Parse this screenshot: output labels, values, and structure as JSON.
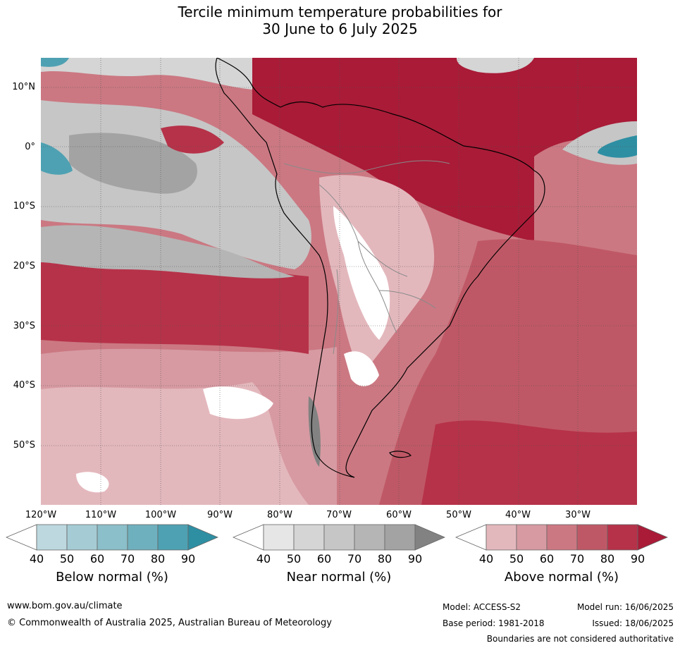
{
  "title_line1": "Tercile minimum temperature probabilities for",
  "title_line2": "30 June to 6 July 2025",
  "lat_labels": [
    "10°N",
    "0°",
    "10°S",
    "20°S",
    "30°S",
    "40°S",
    "50°S"
  ],
  "lon_labels": [
    "120°W",
    "110°W",
    "100°W",
    "90°W",
    "80°W",
    "70°W",
    "60°W",
    "50°W",
    "40°W",
    "30°W"
  ],
  "colors": {
    "below": [
      "#ffffff",
      "#bdd8df",
      "#a5ccd4",
      "#8bbfc9",
      "#6fb0be",
      "#4ea1b2",
      "#2e8fa3"
    ],
    "near": [
      "#ffffff",
      "#e6e6e6",
      "#d5d5d5",
      "#c6c6c6",
      "#b5b5b5",
      "#a3a3a3",
      "#828282"
    ],
    "above": [
      "#ffffff",
      "#e3b8bd",
      "#d79aa2",
      "#cb7882",
      "#bf5866",
      "#b63249",
      "#a91b37"
    ],
    "land_outline": "#000000",
    "border": "#8a8a8a",
    "grid": "#555555"
  },
  "legend": [
    {
      "title": "Below normal (%)",
      "ticks": [
        "40",
        "50",
        "60",
        "70",
        "80",
        "90"
      ]
    },
    {
      "title": "Near normal (%)",
      "ticks": [
        "40",
        "50",
        "60",
        "70",
        "80",
        "90"
      ]
    },
    {
      "title": "Above normal (%)",
      "ticks": [
        "40",
        "50",
        "60",
        "70",
        "80",
        "90"
      ]
    }
  ],
  "footer": {
    "website": "www.bom.gov.au/climate",
    "copyright": "© Commonwealth of Australia 2025, Australian Bureau of Meteorology",
    "model": "Model: ACCESS-S2",
    "base_period": "Base period: 1981-2018",
    "model_run": "Model run: 16/06/2025",
    "issued": "Issued: 18/06/2025",
    "disclaimer": "Boundaries are not considered authoritative"
  }
}
